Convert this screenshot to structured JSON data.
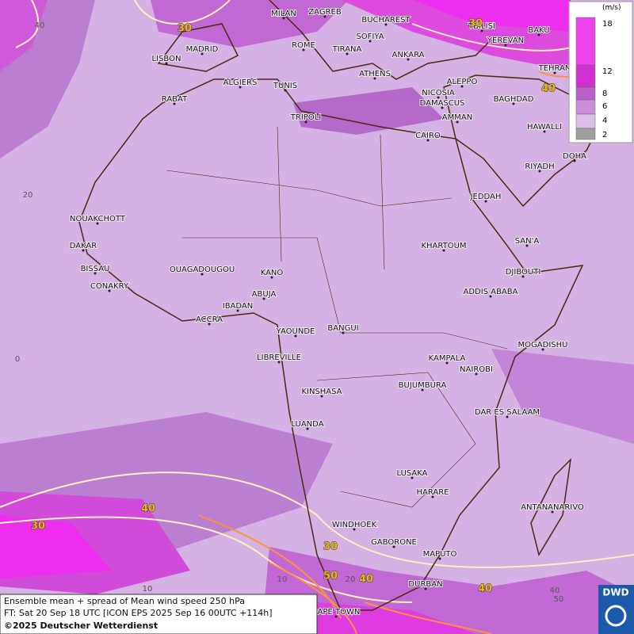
{
  "legend": {
    "unit": "(m/s)",
    "entries": [
      {
        "label": "18",
        "color": "#ee44ee"
      },
      {
        "label": "12",
        "color": "#d030d0"
      },
      {
        "label": "8",
        "color": "#b860c8"
      },
      {
        "label": "6",
        "color": "#c890d8"
      },
      {
        "label": "4",
        "color": "#dcc0e8"
      },
      {
        "label": "2",
        "color": "#a0a0a0"
      }
    ]
  },
  "cities": [
    "MILAN",
    "ZAGREB",
    "BUCHAREST",
    "TBILISI",
    "BAKU",
    "MADRID",
    "ROME",
    "SOFIYA",
    "YEREVAN",
    "LISBON",
    "TIRANA",
    "ANKARA",
    "TEHRAN",
    "ALGIERS",
    "TUNIS",
    "ATHENS",
    "ALEPPO",
    "RABAT",
    "NICOSIA",
    "BAGHDAD",
    "DAMASCUS",
    "AMMAN",
    "TRIPOLI",
    "HAWALLI",
    "CAIRO",
    "DOHA",
    "RIYADH",
    "JEDDAH",
    "NOUAKCHOTT",
    "SAN'A",
    "KHARTOUM",
    "DAKAR",
    "BISSAU",
    "OUAGADOUGOU",
    "DJIBOUTI",
    "KANO",
    "CONAKRY",
    "ABUJA",
    "ADDIS ABABA",
    "IBADAN",
    "ACCRA",
    "YAOUNDE",
    "BANGUI",
    "MOGADISHU",
    "LIBREVILLE",
    "KAMPALA",
    "NAIROBI",
    "KINSHASA",
    "BUJUMBURA",
    "DAR ES SALAAM",
    "LUANDA",
    "LUSAKA",
    "HARARE",
    "ANTANANARIVO",
    "WINDHOEK",
    "GABORONE",
    "MAPUTO",
    "DURBAN",
    "CAPE TOWN"
  ],
  "contour_labels": [
    "30",
    "30",
    "40",
    "40",
    "30",
    "30",
    "50",
    "40",
    "40"
  ],
  "grid_labels": [
    "40",
    "20",
    "0",
    "10",
    "10",
    "20",
    "40",
    "50"
  ],
  "footer": {
    "line1": "Ensemble mean + spread of Mean wind speed 250 hPa",
    "line2": "FT: Sat 20 Sep 18 UTC [ICON EPS 2025 Sep 16 00UTC +114h]",
    "line3": "©2025 Deutscher Wetterdienst"
  },
  "logo": "DWD"
}
